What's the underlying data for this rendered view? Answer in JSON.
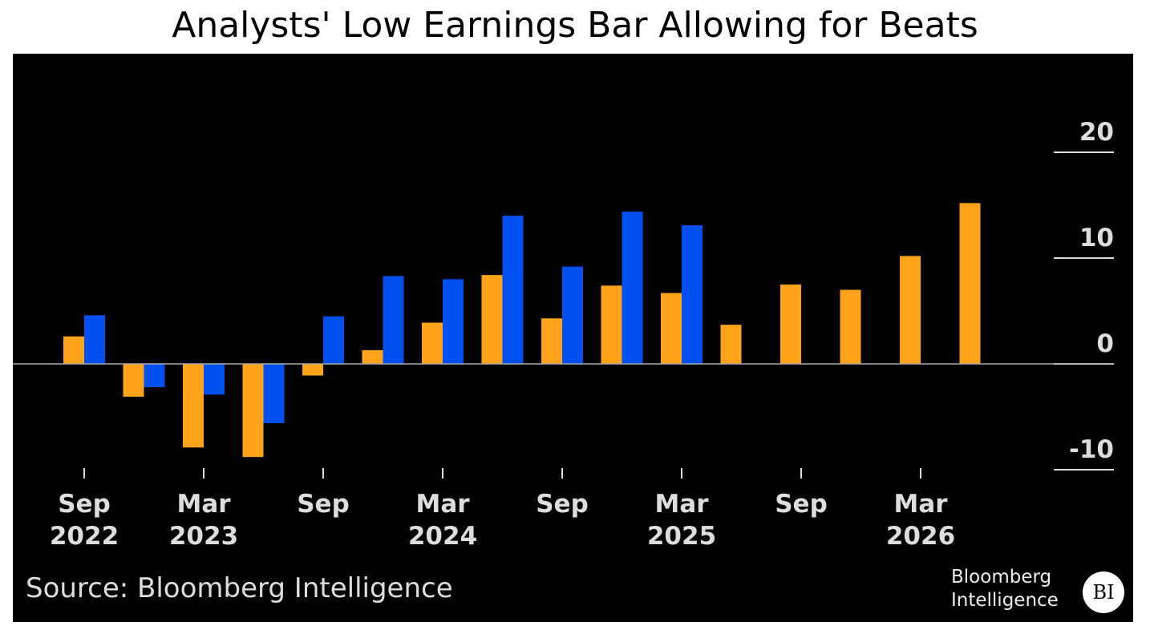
{
  "chart_data": {
    "type": "bar",
    "title": "Analysts' Low Earnings Bar Allowing for Beats",
    "x": [
      "2022-09",
      "2022-12",
      "2023-03",
      "2023-06",
      "2023-09",
      "2023-12",
      "2024-03",
      "2024-06",
      "2024-09",
      "2024-12",
      "2025-03",
      "2025-06",
      "2025-09",
      "2025-12",
      "2026-03",
      "2026-06"
    ],
    "x_tick_labels": [
      {
        "month": "Sep",
        "year": "2022"
      },
      {
        "month": "Mar",
        "year": "2023"
      },
      {
        "month": "Sep",
        "year": ""
      },
      {
        "month": "Mar",
        "year": "2024"
      },
      {
        "month": "Sep",
        "year": ""
      },
      {
        "month": "Mar",
        "year": "2025"
      },
      {
        "month": "Sep",
        "year": ""
      },
      {
        "month": "Mar",
        "year": "2026"
      }
    ],
    "series": [
      {
        "color": "#FFA31A",
        "values": [
          2.6,
          -3.1,
          -7.9,
          -8.8,
          -1.1,
          1.3,
          3.9,
          8.4,
          4.3,
          7.4,
          6.7,
          3.7,
          7.5,
          7.0,
          10.2,
          15.2
        ]
      },
      {
        "color": "#0050F0",
        "values": [
          4.6,
          -2.2,
          -2.9,
          -5.6,
          4.5,
          8.3,
          8.0,
          14.0,
          9.2,
          14.4,
          13.1,
          null,
          null,
          null,
          null,
          null
        ]
      }
    ],
    "y_ticks": [
      "20",
      "10",
      "0",
      "-10"
    ],
    "ylim": [
      -10,
      20
    ],
    "axis_side": "right",
    "grid": false,
    "xlabel": "",
    "ylabel": ""
  },
  "source": "Source: Bloomberg Intelligence",
  "logo": {
    "line1": "Bloomberg",
    "line2": "Intelligence",
    "badge": "BI"
  }
}
